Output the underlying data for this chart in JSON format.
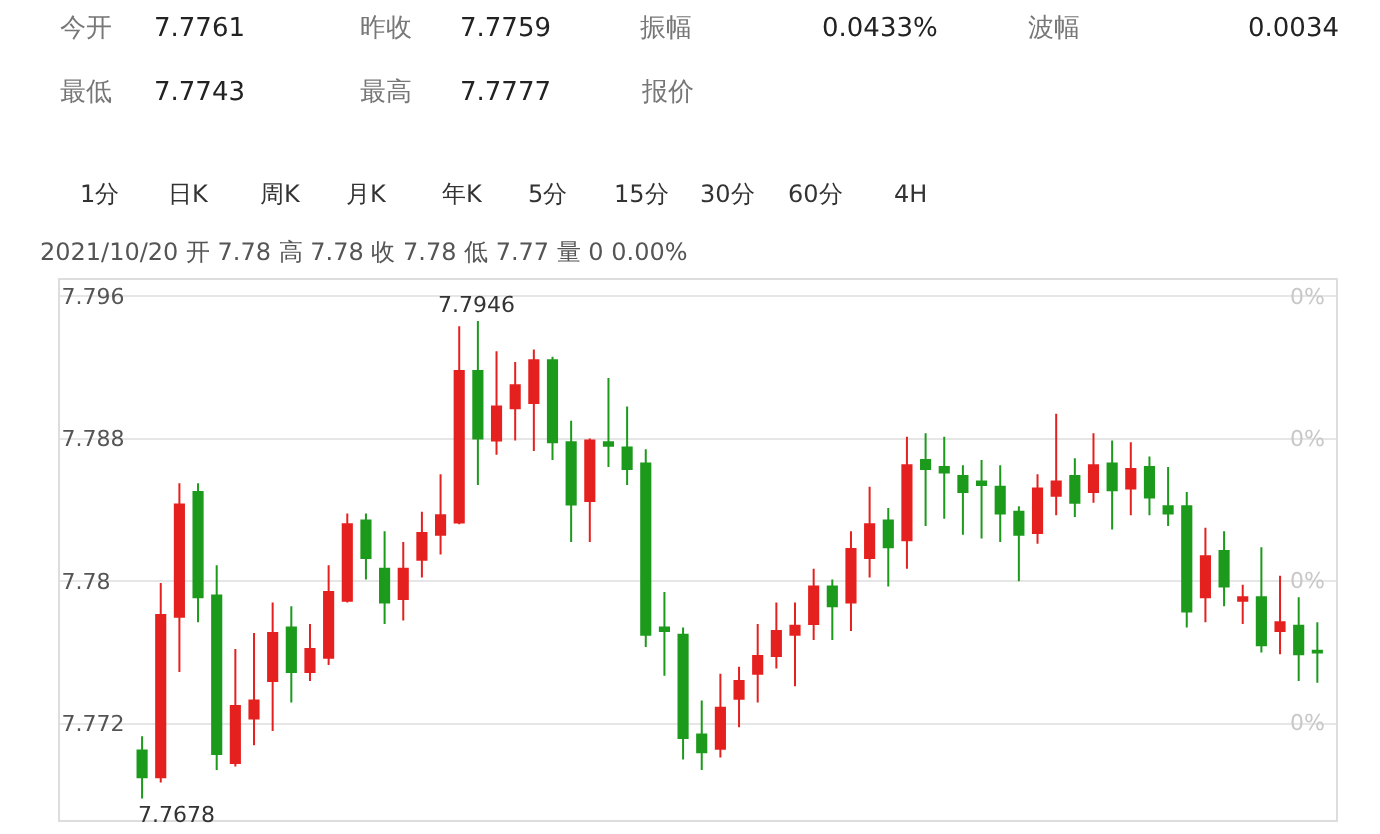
{
  "chart_data": {
    "type": "candlestick",
    "categories": [
      null,
      null,
      null,
      null,
      null,
      null,
      null,
      null,
      null,
      null,
      null,
      null,
      null,
      null,
      null,
      null,
      null,
      null,
      null,
      null,
      null,
      null,
      null,
      null,
      null,
      null,
      null,
      null,
      null,
      null,
      null,
      null,
      null,
      null,
      null,
      null,
      null,
      null,
      null,
      null,
      null,
      null,
      null,
      null,
      null,
      null,
      null,
      null,
      null,
      null,
      null,
      null,
      null,
      null,
      null,
      null,
      null,
      null,
      null,
      null,
      null,
      null,
      null,
      null
    ],
    "ohlc": [
      [
        7.7705,
        7.7713,
        7.7678,
        7.769
      ],
      [
        7.769,
        7.7799,
        7.7687,
        7.7781
      ],
      [
        7.778,
        7.7855,
        7.7749,
        7.7843
      ],
      [
        7.785,
        7.7855,
        7.7777,
        7.7791
      ],
      [
        7.7792,
        7.7809,
        7.7694,
        7.7703
      ],
      [
        7.7698,
        7.7762,
        7.7696,
        7.773
      ],
      [
        7.7723,
        7.7771,
        7.7708,
        7.7733
      ],
      [
        7.7744,
        7.7788,
        7.7716,
        7.7771
      ],
      [
        7.7774,
        7.7786,
        7.7732,
        7.7749
      ],
      [
        7.7749,
        7.7776,
        7.7744,
        7.7762
      ],
      [
        7.7757,
        7.7809,
        7.7753,
        7.7794
      ],
      [
        7.7789,
        7.7838,
        7.7788,
        7.7832
      ],
      [
        7.7834,
        7.7838,
        7.7801,
        7.7813
      ],
      [
        7.7807,
        7.7828,
        7.7776,
        7.7788
      ],
      [
        7.779,
        7.7822,
        7.7778,
        7.7807
      ],
      [
        7.7812,
        7.7839,
        7.7802,
        7.7827
      ],
      [
        7.7826,
        7.786,
        7.7815,
        7.7837
      ],
      [
        7.7833,
        7.7943,
        7.7832,
        7.7918
      ],
      [
        7.7918,
        7.7946,
        7.7854,
        7.788
      ],
      [
        7.7879,
        7.7929,
        7.7871,
        7.7898
      ],
      [
        7.7897,
        7.7923,
        7.7879,
        7.791
      ],
      [
        7.79,
        7.793,
        7.7873,
        7.7924
      ],
      [
        7.7924,
        7.7926,
        7.7868,
        7.7878
      ],
      [
        7.7878,
        7.789,
        7.7822,
        7.7843
      ],
      [
        7.7845,
        7.788,
        7.7822,
        7.7879
      ],
      [
        7.7878,
        7.7914,
        7.7864,
        7.7876
      ],
      [
        7.7875,
        7.7898,
        7.7854,
        7.7863
      ],
      [
        7.7866,
        7.7874,
        7.7763,
        7.777
      ],
      [
        7.7774,
        7.7794,
        7.7747,
        7.7772
      ],
      [
        7.777,
        7.7774,
        7.77,
        7.7712
      ],
      [
        7.7714,
        7.7733,
        7.7694,
        7.7704
      ],
      [
        7.7706,
        7.7748,
        7.7701,
        7.7729
      ],
      [
        7.7734,
        7.7752,
        7.7718,
        7.7744
      ],
      [
        7.7748,
        7.7776,
        7.7732,
        7.7758
      ],
      [
        7.7758,
        7.7788,
        7.7751,
        7.7772
      ],
      [
        7.777,
        7.7788,
        7.7741,
        7.7775
      ],
      [
        7.7776,
        7.7807,
        7.7767,
        7.7797
      ],
      [
        7.7797,
        7.7801,
        7.7767,
        7.7786
      ],
      [
        7.7788,
        7.7828,
        7.7772,
        7.7818
      ],
      [
        7.7813,
        7.7853,
        7.7802,
        7.7832
      ],
      [
        7.7834,
        7.7841,
        7.7797,
        7.7819
      ],
      [
        7.7823,
        7.7881,
        7.7807,
        7.7865
      ],
      [
        7.7868,
        7.7883,
        7.7831,
        7.7863
      ],
      [
        7.7864,
        7.7881,
        7.7835,
        7.7861
      ],
      [
        7.7859,
        7.7865,
        7.7826,
        7.785
      ],
      [
        7.7856,
        7.7868,
        7.7824,
        7.7854
      ],
      [
        7.7853,
        7.7865,
        7.7822,
        7.7838
      ],
      [
        7.7839,
        7.7842,
        7.78,
        7.7826
      ],
      [
        7.7827,
        7.786,
        7.7821,
        7.7852
      ],
      [
        7.7848,
        7.7894,
        7.7837,
        7.7856
      ],
      [
        7.7859,
        7.7869,
        7.7836,
        7.7844
      ],
      [
        7.785,
        7.7883,
        7.7844,
        7.7865
      ],
      [
        7.7866,
        7.7879,
        7.7829,
        7.7851
      ],
      [
        7.7852,
        7.7878,
        7.7837,
        7.7863
      ],
      [
        7.7864,
        7.787,
        7.7837,
        7.7847
      ],
      [
        7.7842,
        7.7864,
        7.7831,
        7.7838
      ],
      [
        7.7842,
        7.785,
        7.7774,
        7.7783
      ],
      [
        7.7791,
        7.783,
        7.7777,
        7.7814
      ],
      [
        7.7817,
        7.7828,
        7.7786,
        7.7797
      ],
      [
        7.7789,
        7.7798,
        7.7776,
        7.7791
      ],
      [
        7.7791,
        7.7819,
        7.776,
        7.7764
      ],
      [
        7.7772,
        7.7803,
        7.7759,
        7.7777
      ],
      [
        7.7775,
        7.7791,
        7.7744,
        7.7759
      ],
      [
        7.7761,
        7.7777,
        7.7743,
        7.776
      ]
    ],
    "colors": [
      "#1c9a1c",
      "#e5211f",
      "#e5211f",
      "#1c9a1c",
      "#1c9a1c",
      "#e5211f",
      "#e5211f",
      "#e5211f",
      "#1c9a1c",
      "#e5211f",
      "#e5211f",
      "#e5211f",
      "#1c9a1c",
      "#1c9a1c",
      "#e5211f",
      "#e5211f",
      "#e5211f",
      "#e5211f",
      "#1c9a1c",
      "#e5211f",
      "#e5211f",
      "#e5211f",
      "#1c9a1c",
      "#1c9a1c",
      "#e5211f",
      "#1c9a1c",
      "#1c9a1c",
      "#1c9a1c",
      "#1c9a1c",
      "#1c9a1c",
      "#1c9a1c",
      "#e5211f",
      "#e5211f",
      "#e5211f",
      "#e5211f",
      "#e5211f",
      "#e5211f",
      "#1c9a1c",
      "#e5211f",
      "#e5211f",
      "#1c9a1c",
      "#e5211f",
      "#1c9a1c",
      "#1c9a1c",
      "#1c9a1c",
      "#1c9a1c",
      "#1c9a1c",
      "#1c9a1c",
      "#e5211f",
      "#e5211f",
      "#1c9a1c",
      "#e5211f",
      "#1c9a1c",
      "#e5211f",
      "#1c9a1c",
      "#1c9a1c",
      "#1c9a1c",
      "#e5211f",
      "#1c9a1c",
      "#e5211f",
      "#1c9a1c",
      "#e5211f",
      "#1c9a1c",
      "#1c9a1c"
    ],
    "ylim": [
      7.7666,
      7.7969
    ],
    "yticks": [
      7.772,
      7.78,
      7.788,
      7.796
    ],
    "grid": "y",
    "annotations": [
      "今开",
      "7.7761",
      "昨收",
      "7.7759",
      "振幅",
      "0.0433%",
      "波幅",
      "0.0034",
      "最低",
      "7.7743",
      "最高",
      "7.7777",
      "报价",
      "1分",
      "日K",
      "周K",
      "月K",
      "年K",
      "5分",
      "15分",
      "30分",
      "60分",
      "4H",
      "2021/10/20 开 7.78 高 7.78 收 7.78 低 7.77 量 0 0.00%",
      "0%",
      "0%",
      "0%",
      "0%",
      "7.7678",
      {
        "text": "7.7946",
        "y": 7.7946
      }
    ]
  }
}
